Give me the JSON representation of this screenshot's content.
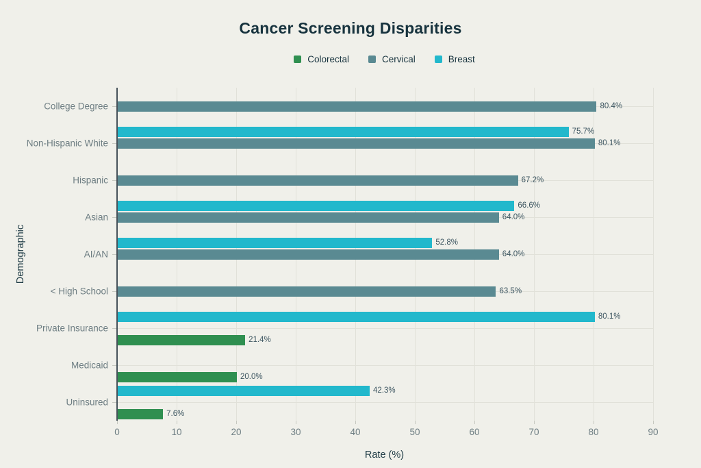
{
  "title": "Cancer Screening Disparities",
  "axes": {
    "x_title": "Rate (%)",
    "y_title": "Demographic"
  },
  "legend": {
    "items": [
      {
        "label": "Colorectal",
        "color": "#2f8f50"
      },
      {
        "label": "Cervical",
        "color": "#5a8a92"
      },
      {
        "label": "Breast",
        "color": "#22b8cc"
      }
    ]
  },
  "colors": {
    "background": "#f0f0ea",
    "title_text": "#17333e",
    "axis_title_text": "#1d3a44",
    "category_text": "#6e7e83",
    "tick_text": "#6e7e83",
    "value_text": "#3c5560",
    "grid_line": "#e1e1d9",
    "axis_line": "#46525a",
    "colorectal": "#2f8f50",
    "cervical": "#5a8a92",
    "breast": "#22b8cc"
  },
  "chart_data": {
    "type": "bar",
    "orientation": "horizontal",
    "title": "Cancer Screening Disparities",
    "xlabel": "Rate (%)",
    "ylabel": "Demographic",
    "xlim": [
      0,
      90
    ],
    "x_ticks": [
      0,
      10,
      20,
      30,
      40,
      50,
      60,
      70,
      80,
      90
    ],
    "grid": true,
    "legend_position": "top",
    "categories": [
      "College Degree",
      "Non-Hispanic White",
      "Hispanic",
      "Asian",
      "AI/AN",
      "< High School",
      "Private Insurance",
      "Medicaid",
      "Uninsured"
    ],
    "slot_order_top_to_bottom": [
      "Breast",
      "Cervical",
      "Colorectal"
    ],
    "series": [
      {
        "name": "Breast",
        "color": "#22b8cc",
        "values": [
          null,
          75.7,
          null,
          66.6,
          52.8,
          null,
          80.1,
          null,
          42.3
        ],
        "labels": [
          null,
          "75.7%",
          null,
          "66.6%",
          "52.8%",
          null,
          "80.1%",
          null,
          "42.3%"
        ]
      },
      {
        "name": "Cervical",
        "color": "#5a8a92",
        "values": [
          80.4,
          80.1,
          67.2,
          64.0,
          64.0,
          63.5,
          null,
          null,
          null
        ],
        "labels": [
          "80.4%",
          "80.1%",
          "67.2%",
          "64.0%",
          "64.0%",
          "63.5%",
          null,
          null,
          null
        ]
      },
      {
        "name": "Colorectal",
        "color": "#2f8f50",
        "values": [
          null,
          null,
          null,
          null,
          null,
          null,
          21.4,
          20.0,
          7.6
        ],
        "labels": [
          null,
          null,
          null,
          null,
          null,
          null,
          "21.4%",
          "20.0%",
          "7.6%"
        ]
      }
    ]
  }
}
